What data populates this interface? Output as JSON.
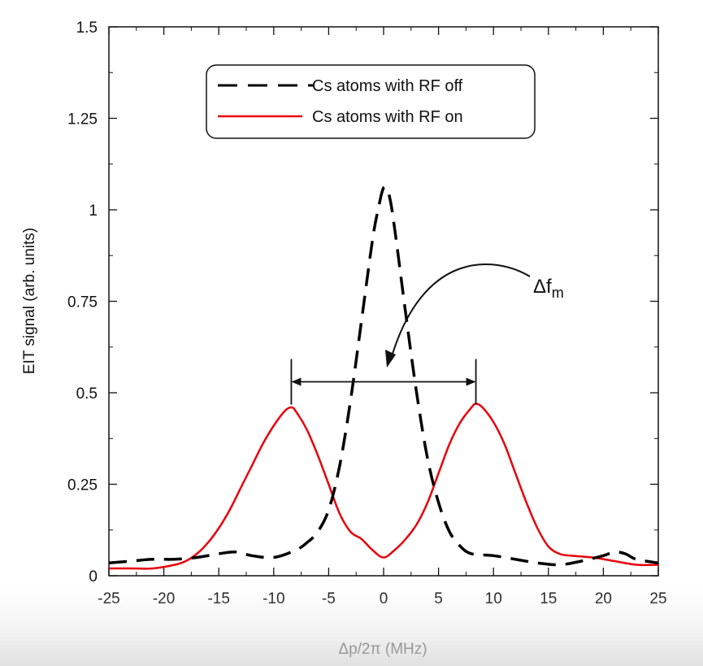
{
  "chart_data": {
    "type": "line",
    "xlabel": "Δp/2π   (MHz)",
    "ylabel": "EIT signal   (arb. units)",
    "xlim": [
      -25,
      25
    ],
    "ylim": [
      0,
      1.5
    ],
    "x_ticks": [
      "-25",
      "-20",
      "-15",
      "-10",
      "-5",
      "0",
      "5",
      "10",
      "15",
      "20",
      "25"
    ],
    "y_ticks": [
      "0",
      "0.25",
      "0.5",
      "0.75",
      "1",
      "1.25",
      "1.5"
    ],
    "legend_position": "top-center",
    "grid": false,
    "series": [
      {
        "name": "Cs atoms with RF off",
        "style": "dashed",
        "color": "#000000",
        "x": [
          -25,
          -23,
          -21,
          -19,
          -17,
          -15,
          -13.5,
          -12,
          -10,
          -8,
          -7,
          -6,
          -5,
          -4,
          -3,
          -2,
          -1,
          -0.5,
          0,
          0.5,
          1,
          2,
          3,
          4,
          5,
          6,
          7,
          8,
          10,
          12,
          14,
          16,
          18,
          20,
          21,
          22,
          23,
          25
        ],
        "y": [
          0.035,
          0.04,
          0.045,
          0.045,
          0.05,
          0.06,
          0.065,
          0.055,
          0.05,
          0.07,
          0.09,
          0.12,
          0.18,
          0.3,
          0.48,
          0.7,
          0.92,
          1.0,
          1.06,
          1.04,
          0.95,
          0.72,
          0.5,
          0.32,
          0.2,
          0.12,
          0.08,
          0.06,
          0.055,
          0.045,
          0.035,
          0.03,
          0.04,
          0.055,
          0.065,
          0.06,
          0.045,
          0.035
        ]
      },
      {
        "name": "Cs atoms with RF on",
        "style": "solid",
        "color": "#e8000b",
        "x": [
          -25,
          -23,
          -21,
          -19,
          -18,
          -17,
          -16,
          -15,
          -14,
          -13,
          -12,
          -11,
          -10,
          -9,
          -8.4,
          -8,
          -7,
          -6,
          -5,
          -4,
          -3,
          -2,
          -1,
          0,
          1,
          2,
          3,
          4,
          5,
          6,
          7,
          8,
          8.4,
          9,
          10,
          11,
          12,
          13,
          14,
          15,
          16,
          17,
          19,
          21,
          23,
          25
        ],
        "y": [
          0.02,
          0.02,
          0.02,
          0.03,
          0.04,
          0.06,
          0.09,
          0.13,
          0.18,
          0.24,
          0.3,
          0.36,
          0.41,
          0.45,
          0.46,
          0.45,
          0.4,
          0.33,
          0.25,
          0.17,
          0.12,
          0.1,
          0.07,
          0.05,
          0.07,
          0.1,
          0.14,
          0.2,
          0.28,
          0.36,
          0.42,
          0.46,
          0.47,
          0.46,
          0.42,
          0.36,
          0.28,
          0.2,
          0.13,
          0.08,
          0.06,
          0.055,
          0.05,
          0.04,
          0.03,
          0.03
        ]
      }
    ],
    "annotations": [
      {
        "text": "Δf",
        "subscript": "m",
        "double_arrow_x": [
          -8.4,
          8.4
        ],
        "double_arrow_y": 0.53
      }
    ]
  }
}
